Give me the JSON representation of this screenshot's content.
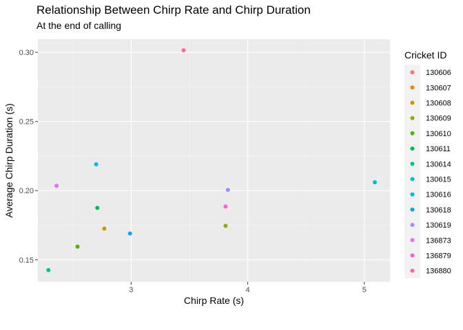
{
  "chart_data": {
    "type": "scatter",
    "title": "Relationship Between Chirp Rate and Chirp Duration",
    "subtitle": "At the end of calling",
    "xlabel": "Chirp Rate (s)",
    "ylabel": "Average Chirp Duration (s)",
    "xlim": [
      2.2,
      5.22
    ],
    "ylim": [
      0.134,
      0.3095
    ],
    "x_ticks": [
      3,
      4,
      5
    ],
    "x_tick_labels": [
      "3",
      "4",
      "5"
    ],
    "y_ticks": [
      0.15,
      0.2,
      0.25,
      0.3
    ],
    "y_tick_labels": [
      "0.15",
      "0.20",
      "0.25",
      "0.30"
    ],
    "grid": true,
    "legend": {
      "title": "Cricket ID",
      "position": "right",
      "entries": [
        "130606",
        "130607",
        "130608",
        "130609",
        "130610",
        "130611",
        "130614",
        "130615",
        "130616",
        "130618",
        "130619",
        "136873",
        "136879",
        "136880"
      ]
    },
    "colors": [
      "#F8766D",
      "#E38900",
      "#C49A00",
      "#99A800",
      "#53B400",
      "#00BC56",
      "#00C094",
      "#00BFC4",
      "#00B6EB",
      "#06A4FF",
      "#A58AFF",
      "#DF70F8",
      "#FB61D7",
      "#FF66A8"
    ],
    "series": [
      {
        "name": "130606",
        "points": []
      },
      {
        "name": "130607",
        "points": []
      },
      {
        "name": "130608",
        "points": [
          [
            2.77,
            0.1725
          ]
        ]
      },
      {
        "name": "130609",
        "points": [
          [
            3.81,
            0.1745
          ]
        ]
      },
      {
        "name": "130610",
        "points": [
          [
            2.54,
            0.1595
          ]
        ]
      },
      {
        "name": "130611",
        "points": [
          [
            2.71,
            0.1875
          ]
        ]
      },
      {
        "name": "130614",
        "points": [
          [
            2.29,
            0.1425
          ]
        ]
      },
      {
        "name": "130615",
        "points": [
          [
            5.09,
            0.206
          ]
        ]
      },
      {
        "name": "130616",
        "points": [
          [
            2.7,
            0.219
          ]
        ]
      },
      {
        "name": "130618",
        "points": [
          [
            2.99,
            0.169
          ]
        ]
      },
      {
        "name": "130619",
        "points": [
          [
            3.83,
            0.2005
          ]
        ]
      },
      {
        "name": "136873",
        "points": [
          [
            2.36,
            0.2035
          ]
        ]
      },
      {
        "name": "136879",
        "points": [
          [
            3.81,
            0.1885
          ]
        ]
      },
      {
        "name": "136880",
        "points": [
          [
            3.45,
            0.3015
          ]
        ]
      }
    ]
  }
}
